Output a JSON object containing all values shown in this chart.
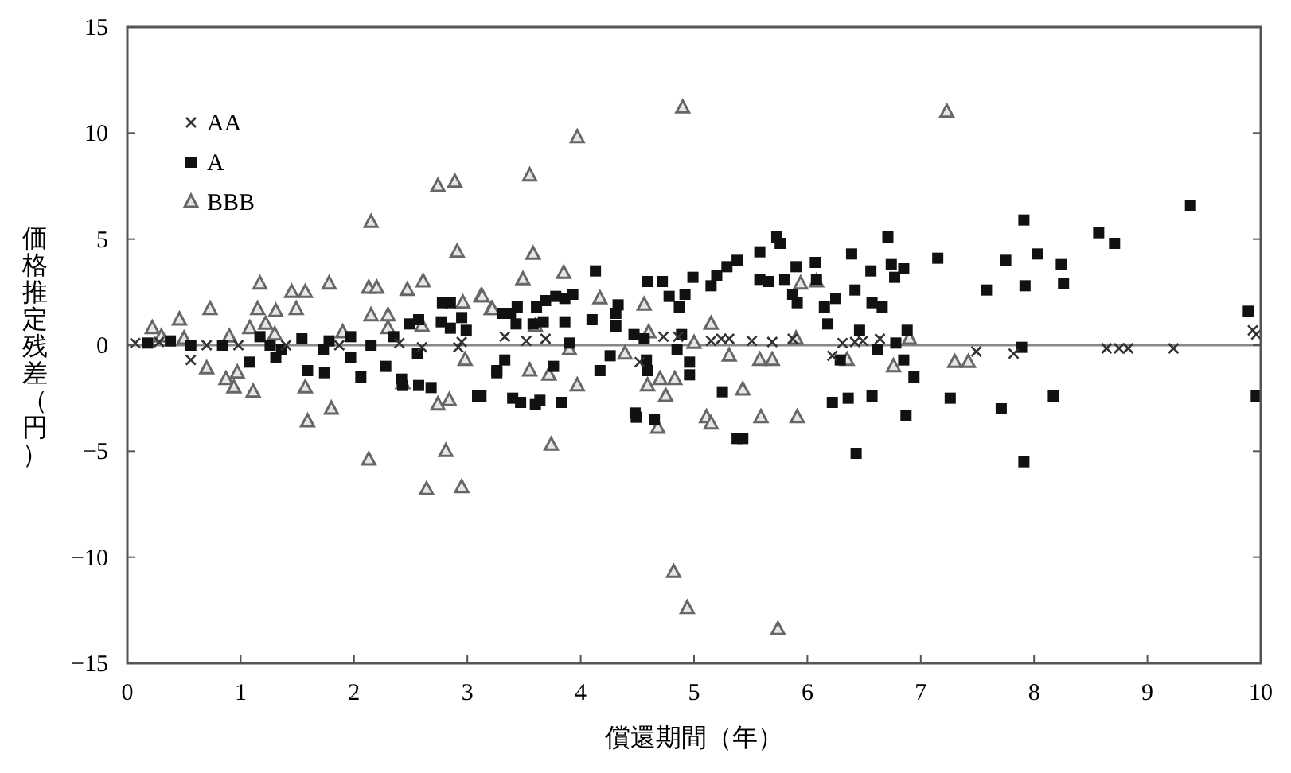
{
  "chart_data": {
    "type": "scatter",
    "xlabel": "償還期間（年）",
    "ylabel": "価格推定残差（円）",
    "xlim": [
      0,
      10
    ],
    "ylim": [
      -15,
      15
    ],
    "xticks": [
      0,
      1,
      2,
      3,
      4,
      5,
      6,
      7,
      8,
      9,
      10
    ],
    "yticks": [
      {
        "value": -15,
        "label": "−15"
      },
      {
        "value": -10,
        "label": "−10"
      },
      {
        "value": -5,
        "label": "−5"
      },
      0,
      5,
      10,
      15
    ],
    "grid": false,
    "legend": "top left",
    "ref_lines": [
      {
        "axis": "y",
        "value": 0,
        "color": "#888888"
      }
    ],
    "series": [
      {
        "name": "AA",
        "color": "#333333",
        "marker": "cross",
        "x": [
          0.07,
          0.28,
          0.56,
          0.7,
          0.98,
          1.4,
          1.87,
          2.4,
          2.6,
          2.92,
          2.95,
          3.33,
          3.52,
          3.69,
          4.52,
          4.73,
          4.86,
          5.15,
          5.24,
          5.31,
          5.51,
          5.69,
          5.87,
          6.22,
          6.31,
          6.42,
          6.49,
          6.64,
          7.49,
          7.82,
          8.64,
          8.75,
          8.83,
          9.23,
          9.93,
          9.96
        ],
        "values": [
          0.1,
          0.15,
          -0.7,
          0,
          0,
          0,
          0,
          0.1,
          -0.1,
          -0.1,
          0.15,
          0.4,
          0.2,
          0.3,
          -0.8,
          0.4,
          0.4,
          0.2,
          0.3,
          0.3,
          0.2,
          0.15,
          0.3,
          -0.5,
          0.1,
          0.15,
          0.2,
          0.3,
          -0.3,
          -0.4,
          -0.15,
          -0.15,
          -0.15,
          -0.15,
          0.7,
          0.5
        ]
      },
      {
        "name": "A",
        "color": "#111111",
        "marker": "square",
        "x": [
          0.18,
          0.38,
          0.56,
          0.84,
          1.08,
          1.17,
          1.26,
          1.31,
          1.36,
          1.54,
          1.59,
          1.73,
          1.74,
          1.78,
          1.97,
          1.97,
          2.06,
          2.15,
          2.28,
          2.35,
          2.42,
          2.43,
          2.49,
          2.56,
          2.57,
          2.57,
          2.68,
          2.77,
          2.78,
          2.85,
          2.85,
          2.95,
          2.99,
          3.09,
          3.12,
          3.26,
          3.26,
          3.31,
          3.33,
          3.38,
          3.4,
          3.43,
          3.44,
          3.47,
          3.58,
          3.6,
          3.61,
          3.64,
          3.67,
          3.69,
          3.76,
          3.78,
          3.83,
          3.86,
          3.86,
          3.9,
          3.93,
          4.1,
          4.13,
          4.17,
          4.26,
          4.31,
          4.31,
          4.33,
          4.47,
          4.48,
          4.49,
          4.56,
          4.58,
          4.59,
          4.59,
          4.65,
          4.72,
          4.78,
          4.85,
          4.87,
          4.89,
          4.92,
          4.96,
          4.96,
          4.99,
          5.15,
          5.2,
          5.25,
          5.29,
          5.38,
          5.38,
          5.43,
          5.58,
          5.58,
          5.66,
          5.73,
          5.76,
          5.8,
          5.87,
          5.9,
          5.91,
          6.07,
          6.08,
          6.15,
          6.18,
          6.22,
          6.25,
          6.29,
          6.36,
          6.39,
          6.42,
          6.43,
          6.46,
          6.56,
          6.57,
          6.57,
          6.62,
          6.66,
          6.71,
          6.74,
          6.77,
          6.78,
          6.85,
          6.85,
          6.87,
          6.88,
          6.94,
          7.15,
          7.26,
          7.58,
          7.71,
          7.75,
          7.89,
          7.91,
          7.91,
          7.92,
          8.03,
          8.17,
          8.24,
          8.26,
          8.57,
          8.71,
          9.38,
          9.89,
          9.96
        ],
        "values": [
          0.1,
          0.2,
          0,
          0,
          -0.8,
          0.4,
          0,
          -0.6,
          -0.2,
          0.3,
          -1.2,
          -0.2,
          -1.3,
          0.2,
          0.4,
          -0.6,
          -1.5,
          0,
          -1,
          0.4,
          -1.6,
          -1.9,
          1,
          -0.4,
          1.2,
          -1.9,
          -2,
          1.1,
          2,
          2,
          0.8,
          1.3,
          0.7,
          -2.4,
          -2.4,
          -1.2,
          -1.3,
          1.5,
          -0.7,
          1.5,
          -2.5,
          1,
          1.8,
          -2.7,
          1,
          -2.8,
          1.8,
          -2.6,
          1.1,
          2.1,
          -1,
          2.3,
          -2.7,
          2.2,
          1.1,
          0.1,
          2.4,
          1.2,
          3.5,
          -1.2,
          -0.5,
          1.5,
          0.9,
          1.9,
          0.5,
          -3.2,
          -3.4,
          0.3,
          -0.7,
          3,
          -1.2,
          -3.5,
          3,
          2.3,
          -0.2,
          1.8,
          0.5,
          2.4,
          -0.8,
          -1.4,
          3.2,
          2.8,
          3.3,
          -2.2,
          3.7,
          4,
          -4.4,
          -4.4,
          4.4,
          3.1,
          3,
          5.1,
          4.8,
          3.1,
          2.4,
          3.7,
          2,
          3.9,
          3.1,
          1.8,
          1,
          -2.7,
          2.2,
          -0.7,
          -2.5,
          4.3,
          2.6,
          -5.1,
          0.7,
          3.5,
          2,
          -2.4,
          -0.2,
          1.8,
          5.1,
          3.8,
          3.2,
          0.1,
          3.6,
          -0.7,
          -3.3,
          0.7,
          -1.5,
          4.1,
          -2.5,
          2.6,
          -3,
          4,
          -0.1,
          5.9,
          -5.5,
          2.8,
          4.3,
          -2.4,
          3.8,
          2.9,
          5.3,
          4.8,
          6.6,
          1.6,
          -2.4
        ]
      },
      {
        "name": "BBB",
        "color": "#666666",
        "marker": "triangle",
        "x": [
          0.22,
          0.3,
          0.46,
          0.5,
          0.7,
          0.73,
          0.87,
          0.9,
          0.94,
          0.97,
          1.08,
          1.11,
          1.15,
          1.17,
          1.22,
          1.3,
          1.31,
          1.45,
          1.49,
          1.57,
          1.57,
          1.59,
          1.78,
          1.8,
          1.9,
          2.13,
          2.13,
          2.15,
          2.15,
          2.2,
          2.3,
          2.3,
          2.43,
          2.47,
          2.6,
          2.61,
          2.64,
          2.74,
          2.74,
          2.81,
          2.84,
          2.89,
          2.91,
          2.95,
          2.96,
          2.98,
          3.12,
          3.13,
          3.21,
          3.22,
          3.49,
          3.55,
          3.55,
          3.58,
          3.6,
          3.72,
          3.74,
          3.85,
          3.9,
          3.97,
          3.97,
          4.17,
          4.39,
          4.56,
          4.59,
          4.6,
          4.68,
          4.7,
          4.75,
          4.82,
          4.83,
          4.9,
          4.94,
          5.0,
          5.11,
          5.15,
          5.15,
          5.31,
          5.43,
          5.58,
          5.59,
          5.69,
          5.74,
          5.9,
          5.91,
          5.94,
          6.08,
          6.35,
          6.76,
          6.9,
          7.3,
          7.42,
          7.23
        ],
        "values": [
          0.8,
          0.4,
          1.2,
          0.3,
          -1.1,
          1.7,
          -1.6,
          0.4,
          -2,
          -1.3,
          0.8,
          -2.2,
          1.7,
          2.9,
          1,
          0.5,
          1.6,
          2.5,
          1.7,
          2.5,
          -2,
          -3.6,
          2.9,
          -3,
          0.6,
          2.7,
          -5.4,
          5.8,
          1.4,
          2.7,
          1.4,
          0.8,
          -1.8,
          2.6,
          0.9,
          3,
          -6.8,
          7.5,
          -2.8,
          -5,
          -2.6,
          7.7,
          4.4,
          -6.7,
          2,
          -0.7,
          2.3,
          2.3,
          1.7,
          1.7,
          3.1,
          8,
          -1.2,
          4.3,
          0.9,
          -1.4,
          -4.7,
          3.4,
          -0.2,
          9.8,
          -1.9,
          2.2,
          -0.4,
          1.9,
          -1.9,
          0.6,
          -3.9,
          -1.6,
          -2.4,
          -10.7,
          -1.6,
          11.2,
          -12.4,
          0.1,
          -3.4,
          -3.7,
          1,
          -0.5,
          -2.1,
          -0.7,
          -3.4,
          -0.7,
          -13.4,
          0.3,
          -3.4,
          2.9,
          3,
          -0.7,
          -1,
          0.3,
          -0.8,
          -0.8,
          11
        ]
      }
    ]
  }
}
